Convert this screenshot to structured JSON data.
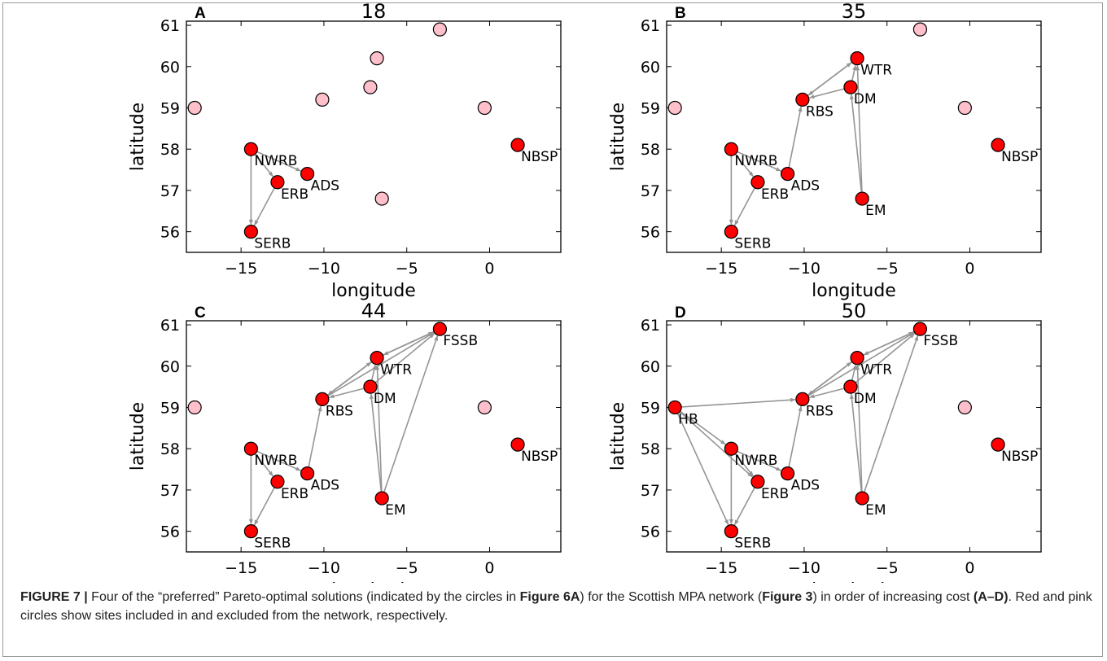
{
  "figure": {
    "axis_xlabel": "longitude",
    "axis_ylabel": "latitude"
  },
  "caption": {
    "label": "FIGURE 7 |",
    "t1": " Four of the “preferred” Pareto-optimal solutions (indicated by the circles in ",
    "ref1": "Figure 6A",
    "t2": ") for the Scottish MPA network (",
    "ref2": "Figure 3",
    "t3": ") in order of increasing cost ",
    "ref3": "(A–D)",
    "t4": ". Red and pink circles show sites included in and excluded from the network, respectively."
  },
  "colors": {
    "included": "#ff0000",
    "excluded": "#ffc0cb",
    "edge": "#959595"
  },
  "chart_data": [
    {
      "type": "scatter",
      "panel": "A",
      "title": "18",
      "xlabel": "longitude",
      "ylabel": "latitude",
      "xlim": [
        -18.3,
        4.3
      ],
      "ylim": [
        55.5,
        61.1
      ],
      "xticks": [
        -15,
        -10,
        -5,
        0
      ],
      "yticks": [
        56,
        57,
        58,
        59,
        60,
        61
      ],
      "nodes": [
        {
          "label": "NWRB",
          "x": -14.4,
          "y": 58.0,
          "included": true
        },
        {
          "label": "ERB",
          "x": -12.8,
          "y": 57.2,
          "included": true
        },
        {
          "label": "ADS",
          "x": -11.0,
          "y": 57.4,
          "included": true
        },
        {
          "label": "SERB",
          "x": -14.4,
          "y": 56.0,
          "included": true
        },
        {
          "label": "NBSP",
          "x": 1.7,
          "y": 58.1,
          "included": true
        },
        {
          "label": "",
          "x": -17.8,
          "y": 59.0,
          "included": false
        },
        {
          "label": "",
          "x": -10.1,
          "y": 59.2,
          "included": false
        },
        {
          "label": "",
          "x": -7.2,
          "y": 59.5,
          "included": false
        },
        {
          "label": "",
          "x": -6.8,
          "y": 60.2,
          "included": false
        },
        {
          "label": "",
          "x": -3.0,
          "y": 60.9,
          "included": false
        },
        {
          "label": "",
          "x": -0.3,
          "y": 59.0,
          "included": false
        },
        {
          "label": "",
          "x": -6.5,
          "y": 56.8,
          "included": false
        }
      ],
      "edges": [
        [
          "NWRB",
          "ADS"
        ],
        [
          "NWRB",
          "ERB"
        ],
        [
          "NWRB",
          "SERB"
        ],
        [
          "ERB",
          "SERB"
        ]
      ]
    },
    {
      "type": "scatter",
      "panel": "B",
      "title": "35",
      "xlabel": "longitude",
      "ylabel": "latitude",
      "xlim": [
        -18.3,
        4.3
      ],
      "ylim": [
        55.5,
        61.1
      ],
      "xticks": [
        -15,
        -10,
        -5,
        0
      ],
      "yticks": [
        56,
        57,
        58,
        59,
        60,
        61
      ],
      "nodes": [
        {
          "label": "NWRB",
          "x": -14.4,
          "y": 58.0,
          "included": true
        },
        {
          "label": "ERB",
          "x": -12.8,
          "y": 57.2,
          "included": true
        },
        {
          "label": "ADS",
          "x": -11.0,
          "y": 57.4,
          "included": true
        },
        {
          "label": "SERB",
          "x": -14.4,
          "y": 56.0,
          "included": true
        },
        {
          "label": "NBSP",
          "x": 1.7,
          "y": 58.1,
          "included": true
        },
        {
          "label": "RBS",
          "x": -10.1,
          "y": 59.2,
          "included": true
        },
        {
          "label": "DM",
          "x": -7.2,
          "y": 59.5,
          "included": true
        },
        {
          "label": "WTR",
          "x": -6.8,
          "y": 60.2,
          "included": true
        },
        {
          "label": "EM",
          "x": -6.5,
          "y": 56.8,
          "included": true
        },
        {
          "label": "",
          "x": -17.8,
          "y": 59.0,
          "included": false
        },
        {
          "label": "",
          "x": -3.0,
          "y": 60.9,
          "included": false
        },
        {
          "label": "",
          "x": -0.3,
          "y": 59.0,
          "included": false
        }
      ],
      "edges": [
        [
          "NWRB",
          "ADS"
        ],
        [
          "NWRB",
          "ERB"
        ],
        [
          "NWRB",
          "SERB"
        ],
        [
          "ERB",
          "SERB"
        ],
        [
          "ADS",
          "RBS"
        ],
        [
          "WTR",
          "RBS"
        ],
        [
          "DM",
          "RBS"
        ],
        [
          "RBS",
          "WTR"
        ],
        [
          "DM",
          "WTR"
        ],
        [
          "EM",
          "DM"
        ],
        [
          "EM",
          "WTR"
        ]
      ]
    },
    {
      "type": "scatter",
      "panel": "C",
      "title": "44",
      "xlabel": "longitude",
      "ylabel": "latitude",
      "xlim": [
        -18.3,
        4.3
      ],
      "ylim": [
        55.5,
        61.1
      ],
      "xticks": [
        -15,
        -10,
        -5,
        0
      ],
      "yticks": [
        56,
        57,
        58,
        59,
        60,
        61
      ],
      "nodes": [
        {
          "label": "NWRB",
          "x": -14.4,
          "y": 58.0,
          "included": true
        },
        {
          "label": "ERB",
          "x": -12.8,
          "y": 57.2,
          "included": true
        },
        {
          "label": "ADS",
          "x": -11.0,
          "y": 57.4,
          "included": true
        },
        {
          "label": "SERB",
          "x": -14.4,
          "y": 56.0,
          "included": true
        },
        {
          "label": "NBSP",
          "x": 1.7,
          "y": 58.1,
          "included": true
        },
        {
          "label": "RBS",
          "x": -10.1,
          "y": 59.2,
          "included": true
        },
        {
          "label": "DM",
          "x": -7.2,
          "y": 59.5,
          "included": true
        },
        {
          "label": "WTR",
          "x": -6.8,
          "y": 60.2,
          "included": true
        },
        {
          "label": "EM",
          "x": -6.5,
          "y": 56.8,
          "included": true
        },
        {
          "label": "FSSB",
          "x": -3.0,
          "y": 60.9,
          "included": true
        },
        {
          "label": "",
          "x": -17.8,
          "y": 59.0,
          "included": false
        },
        {
          "label": "",
          "x": -0.3,
          "y": 59.0,
          "included": false
        }
      ],
      "edges": [
        [
          "NWRB",
          "ADS"
        ],
        [
          "NWRB",
          "ERB"
        ],
        [
          "NWRB",
          "SERB"
        ],
        [
          "ERB",
          "SERB"
        ],
        [
          "ADS",
          "RBS"
        ],
        [
          "WTR",
          "RBS"
        ],
        [
          "DM",
          "RBS"
        ],
        [
          "RBS",
          "WTR"
        ],
        [
          "DM",
          "WTR"
        ],
        [
          "EM",
          "DM"
        ],
        [
          "EM",
          "WTR"
        ],
        [
          "RBS",
          "FSSB"
        ],
        [
          "FSSB",
          "WTR"
        ],
        [
          "WTR",
          "FSSB"
        ],
        [
          "DM",
          "FSSB"
        ],
        [
          "EM",
          "FSSB"
        ]
      ]
    },
    {
      "type": "scatter",
      "panel": "D",
      "title": "50",
      "xlabel": "longitude",
      "ylabel": "latitude",
      "xlim": [
        -18.3,
        4.3
      ],
      "ylim": [
        55.5,
        61.1
      ],
      "xticks": [
        -15,
        -10,
        -5,
        0
      ],
      "yticks": [
        56,
        57,
        58,
        59,
        60,
        61
      ],
      "nodes": [
        {
          "label": "NWRB",
          "x": -14.4,
          "y": 58.0,
          "included": true
        },
        {
          "label": "ERB",
          "x": -12.8,
          "y": 57.2,
          "included": true
        },
        {
          "label": "ADS",
          "x": -11.0,
          "y": 57.4,
          "included": true
        },
        {
          "label": "SERB",
          "x": -14.4,
          "y": 56.0,
          "included": true
        },
        {
          "label": "NBSP",
          "x": 1.7,
          "y": 58.1,
          "included": true
        },
        {
          "label": "RBS",
          "x": -10.1,
          "y": 59.2,
          "included": true
        },
        {
          "label": "DM",
          "x": -7.2,
          "y": 59.5,
          "included": true
        },
        {
          "label": "WTR",
          "x": -6.8,
          "y": 60.2,
          "included": true
        },
        {
          "label": "EM",
          "x": -6.5,
          "y": 56.8,
          "included": true
        },
        {
          "label": "FSSB",
          "x": -3.0,
          "y": 60.9,
          "included": true
        },
        {
          "label": "HB",
          "x": -17.8,
          "y": 59.0,
          "included": true
        },
        {
          "label": "",
          "x": -0.3,
          "y": 59.0,
          "included": false
        }
      ],
      "edges": [
        [
          "NWRB",
          "ADS"
        ],
        [
          "NWRB",
          "ERB"
        ],
        [
          "NWRB",
          "SERB"
        ],
        [
          "ERB",
          "SERB"
        ],
        [
          "ADS",
          "RBS"
        ],
        [
          "WTR",
          "RBS"
        ],
        [
          "DM",
          "RBS"
        ],
        [
          "RBS",
          "WTR"
        ],
        [
          "DM",
          "WTR"
        ],
        [
          "EM",
          "DM"
        ],
        [
          "EM",
          "WTR"
        ],
        [
          "RBS",
          "FSSB"
        ],
        [
          "FSSB",
          "WTR"
        ],
        [
          "WTR",
          "FSSB"
        ],
        [
          "DM",
          "FSSB"
        ],
        [
          "EM",
          "FSSB"
        ],
        [
          "HB",
          "RBS"
        ],
        [
          "HB",
          "NWRB"
        ],
        [
          "HB",
          "ERB"
        ],
        [
          "HB",
          "SERB"
        ]
      ]
    }
  ]
}
